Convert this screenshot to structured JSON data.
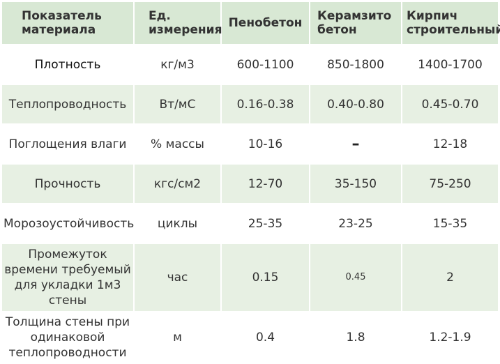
{
  "table": {
    "headers": [
      "Показатель материала",
      "Ед. измерения",
      "Пенобетон",
      "Керамзито бетон",
      "Кирпич строительный"
    ],
    "rows": [
      [
        "Плотность",
        "кг/м3",
        "600-1100",
        "850-1800",
        "1400-1700"
      ],
      [
        "Теплопроводность",
        "Вт/мС",
        "0.16-0.38",
        "0.40-0.80",
        "0.45-0.70"
      ],
      [
        "Поглощения влаги",
        "% массы",
        "10-16",
        "–",
        "12-18"
      ],
      [
        "Прочность",
        "кгс/см2",
        "12-70",
        "35-150",
        "75-250"
      ],
      [
        "Морозоустойчивость",
        "циклы",
        "25-35",
        "23-25",
        "15-35"
      ],
      [
        "Промежуток времени требуемый для укладки 1м3 стены",
        "час",
        "0.15",
        "0.45",
        "2"
      ],
      [
        "Толщина стены при одинаковой теплопроводности",
        "м",
        "0.4",
        "1.8",
        "1.2-1.9"
      ]
    ]
  }
}
